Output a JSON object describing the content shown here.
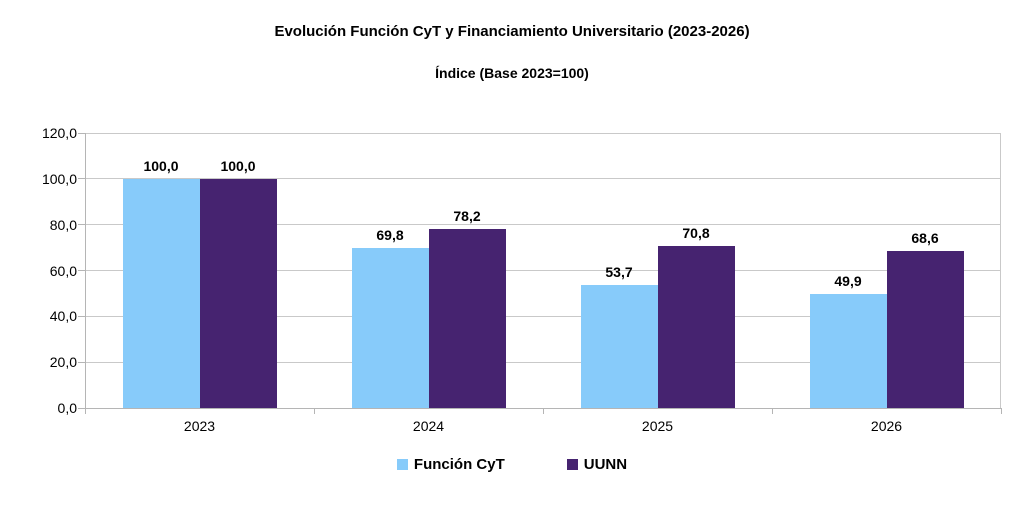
{
  "chart_data": {
    "type": "bar",
    "title": "Evolución Función CyT y Financiamiento Universitario (2023-2026)",
    "subtitle": "Índice (Base 2023=100)",
    "categories": [
      "2023",
      "2024",
      "2025",
      "2026"
    ],
    "series": [
      {
        "name": "Función CyT",
        "color": "#87cbfa",
        "values": [
          100.0,
          69.8,
          53.7,
          49.9
        ],
        "labels": [
          "100,0",
          "69,8",
          "53,7",
          "49,9"
        ]
      },
      {
        "name": "UUNN",
        "color": "#462370",
        "values": [
          100.0,
          78.2,
          70.8,
          68.6
        ],
        "labels": [
          "100,0",
          "78,2",
          "70,8",
          "68,6"
        ]
      }
    ],
    "xlabel": "",
    "ylabel": "",
    "ylim": [
      0,
      120
    ],
    "y_ticks": {
      "values": [
        0,
        20,
        40,
        60,
        80,
        100,
        120
      ],
      "labels": [
        "0,0",
        "20,0",
        "40,0",
        "60,0",
        "80,0",
        "100,0",
        "120,0"
      ]
    },
    "grid": true,
    "legend_position": "bottom",
    "colors": {
      "background": "#ffffff",
      "gridline": "#c9c9c9",
      "axis": "#b5b5b5",
      "text": "#000000"
    }
  }
}
